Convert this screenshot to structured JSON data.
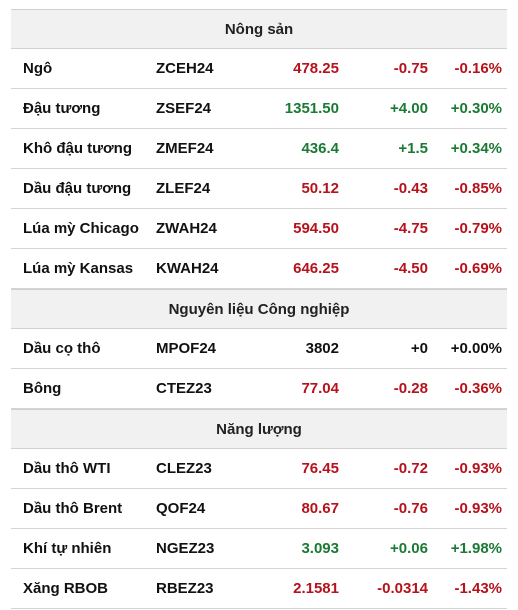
{
  "sections": [
    {
      "title": "Nông sản",
      "rows": [
        {
          "name": "Ngô",
          "code": "ZCEH24",
          "price": "478.25",
          "change": "-0.75",
          "pct": "-0.16%",
          "trend": "neg"
        },
        {
          "name": "Đậu tương",
          "code": "ZSEF24",
          "price": "1351.50",
          "change": "+4.00",
          "pct": "+0.30%",
          "trend": "pos"
        },
        {
          "name": "Khô đậu tương",
          "code": "ZMEF24",
          "price": "436.4",
          "change": "+1.5",
          "pct": "+0.34%",
          "trend": "pos"
        },
        {
          "name": "Dầu đậu tương",
          "code": "ZLEF24",
          "price": "50.12",
          "change": "-0.43",
          "pct": "-0.85%",
          "trend": "neg"
        },
        {
          "name": "Lúa mỳ Chicago",
          "code": "ZWAH24",
          "price": "594.50",
          "change": "-4.75",
          "pct": "-0.79%",
          "trend": "neg"
        },
        {
          "name": "Lúa mỳ Kansas",
          "code": "KWAH24",
          "price": "646.25",
          "change": "-4.50",
          "pct": "-0.69%",
          "trend": "neg"
        }
      ]
    },
    {
      "title": "Nguyên liệu Công nghiệp",
      "rows": [
        {
          "name": "Dầu cọ thô",
          "code": "MPOF24",
          "price": "3802",
          "change": "+0",
          "pct": "+0.00%",
          "trend": "flat"
        },
        {
          "name": "Bông",
          "code": "CTEZ23",
          "price": "77.04",
          "change": "-0.28",
          "pct": "-0.36%",
          "trend": "neg"
        }
      ]
    },
    {
      "title": "Năng lượng",
      "rows": [
        {
          "name": "Dầu thô WTI",
          "code": "CLEZ23",
          "price": "76.45",
          "change": "-0.72",
          "pct": "-0.93%",
          "trend": "neg"
        },
        {
          "name": "Dầu thô Brent",
          "code": "QOF24",
          "price": "80.67",
          "change": "-0.76",
          "pct": "-0.93%",
          "trend": "neg"
        },
        {
          "name": "Khí tự nhiên",
          "code": "NGEZ23",
          "price": "3.093",
          "change": "+0.06",
          "pct": "+1.98%",
          "trend": "pos"
        },
        {
          "name": "Xăng RBOB",
          "code": "RBEZ23",
          "price": "2.1581",
          "change": "-0.0314",
          "pct": "-1.43%",
          "trend": "neg"
        }
      ]
    }
  ],
  "colors": {
    "negative": "#b5121b",
    "positive": "#1a7a33",
    "neutral": "#111111",
    "header_bg": "#f1f1f1"
  }
}
